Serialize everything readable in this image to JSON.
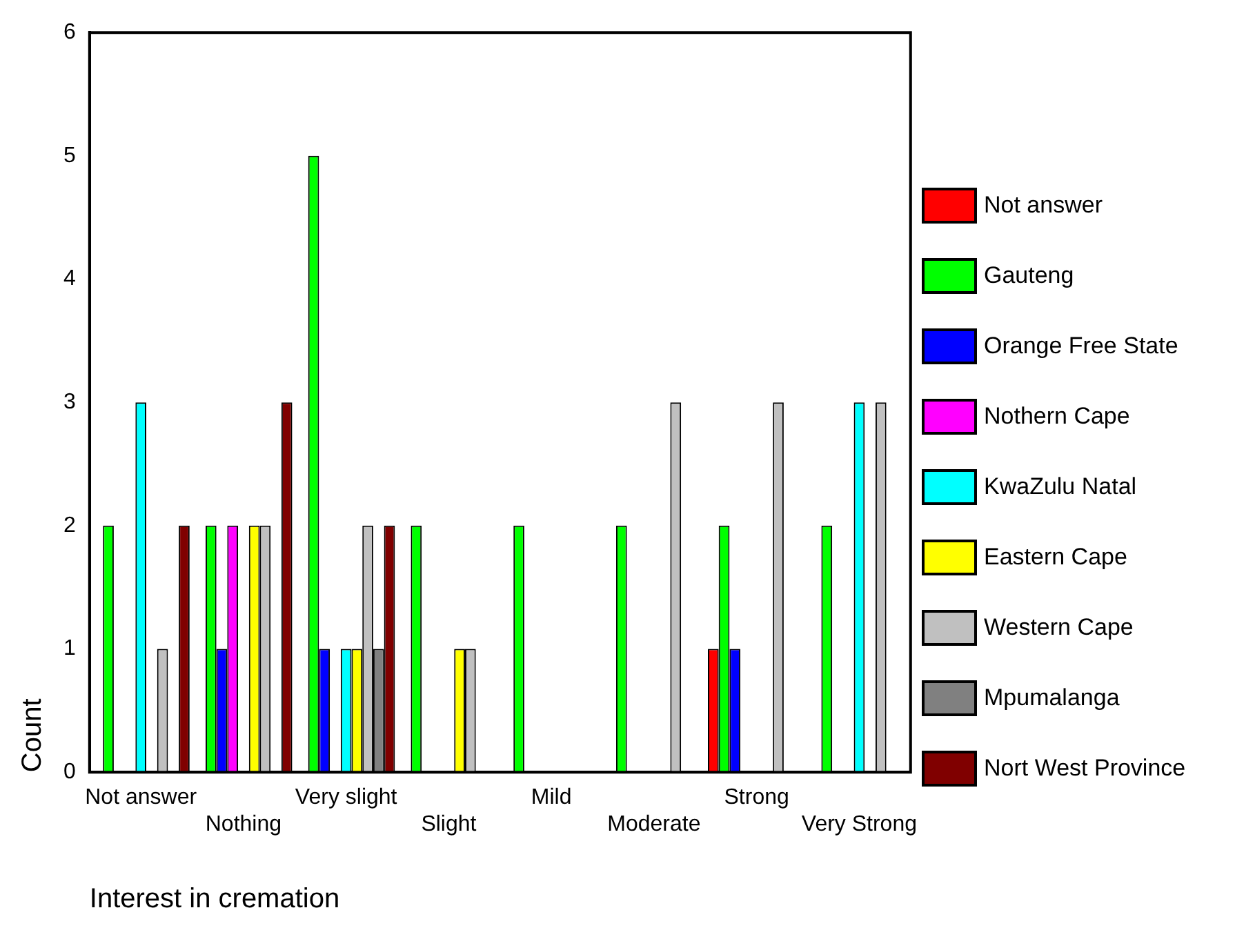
{
  "chart_data": {
    "type": "bar",
    "xlabel": "Interest in cremation",
    "ylabel": "Count",
    "categories": [
      "Not answer",
      "Nothing",
      "Very slight",
      "Slight",
      "Mild",
      "Moderate",
      "Strong",
      "Very Strong"
    ],
    "ylim": [
      0,
      6
    ],
    "yticks": [
      0,
      1,
      2,
      3,
      4,
      5,
      6
    ],
    "grid": false,
    "legend": "right",
    "series": [
      {
        "name": "Not answer",
        "color": "#ff0000",
        "values": [
          0,
          0,
          0,
          0,
          0,
          0,
          1,
          0
        ]
      },
      {
        "name": "Gauteng",
        "color": "#00ff00",
        "values": [
          2,
          2,
          5,
          2,
          2,
          2,
          2,
          2
        ]
      },
      {
        "name": "Orange Free State",
        "color": "#0000ff",
        "values": [
          0,
          1,
          1,
          0,
          0,
          0,
          1,
          0
        ]
      },
      {
        "name": "Nothern Cape",
        "color": "#ff00ff",
        "values": [
          0,
          2,
          0,
          0,
          0,
          0,
          0,
          0
        ]
      },
      {
        "name": "KwaZulu Natal",
        "color": "#00ffff",
        "values": [
          3,
          0,
          1,
          0,
          0,
          0,
          0,
          3
        ]
      },
      {
        "name": "Eastern Cape",
        "color": "#ffff00",
        "values": [
          0,
          2,
          1,
          1,
          0,
          0,
          0,
          0
        ]
      },
      {
        "name": "Western Cape",
        "color": "#c0c0c0",
        "values": [
          1,
          2,
          2,
          1,
          0,
          3,
          3,
          3
        ]
      },
      {
        "name": "Mpumalanga",
        "color": "#808080",
        "values": [
          0,
          0,
          1,
          0,
          0,
          0,
          0,
          0
        ]
      },
      {
        "name": "Nort West Province",
        "color": "#800000",
        "values": [
          2,
          3,
          2,
          0,
          0,
          0,
          0,
          0
        ]
      }
    ]
  }
}
